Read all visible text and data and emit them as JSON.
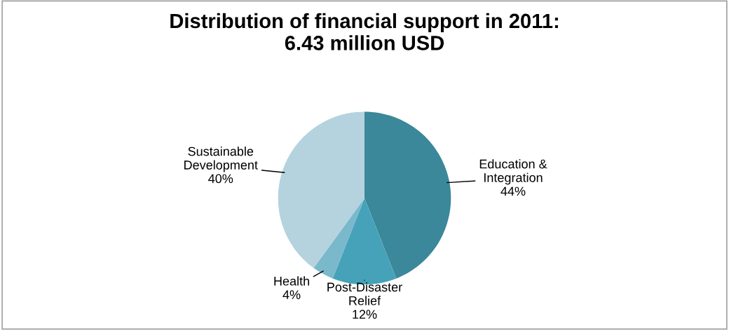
{
  "chart_data": {
    "type": "pie",
    "title": "Distribution of financial support in 2011:\n6.43 million USD",
    "categories": [
      "Education &\nIntegration",
      "Post-Disaster\nRelief",
      "Health",
      "Sustainable\nDevelopment"
    ],
    "values": [
      44,
      12,
      4,
      40
    ],
    "value_labels": [
      "44%",
      "12%",
      "4%",
      "40%"
    ],
    "colors": [
      "#3a8899",
      "#46a2b9",
      "#7ab8cc",
      "#b4d3de"
    ],
    "legend": false
  }
}
